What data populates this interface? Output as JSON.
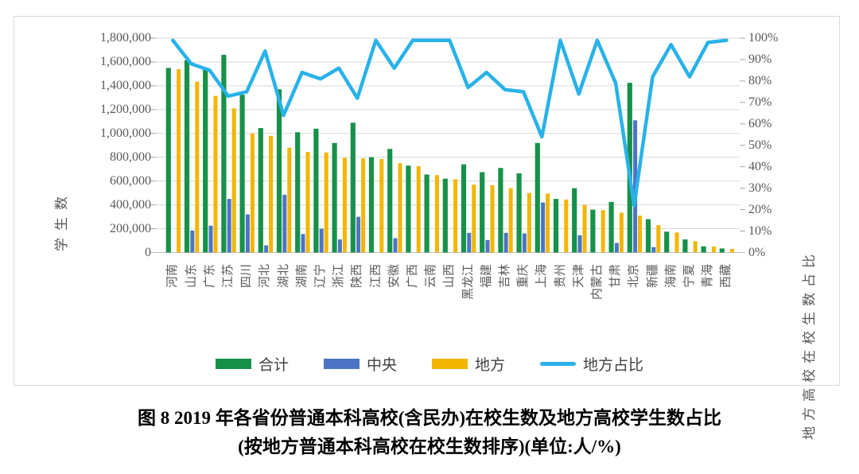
{
  "chart_data": {
    "type": "bar+line combo",
    "sorted_by": "local series descending",
    "categories": [
      "河南",
      "山东",
      "广东",
      "江苏",
      "四川",
      "河北",
      "湖北",
      "湖南",
      "辽宁",
      "浙江",
      "陕西",
      "江西",
      "安徽",
      "广西",
      "云南",
      "山西",
      "黑龙江",
      "福建",
      "吉林",
      "重庆",
      "上海",
      "贵州",
      "天津",
      "内蒙古",
      "甘肃",
      "北京",
      "新疆",
      "海南",
      "宁夏",
      "青海",
      "西藏"
    ],
    "series": [
      {
        "name": "合计",
        "type": "bar",
        "color": "#17914a",
        "values": [
          1550000,
          1615000,
          1540000,
          1660000,
          1325000,
          1045000,
          1370000,
          1010000,
          1040000,
          920000,
          1090000,
          800000,
          870000,
          730000,
          655000,
          620000,
          740000,
          675000,
          710000,
          665000,
          920000,
          450000,
          540000,
          360000,
          425000,
          1425000,
          280000,
          175000,
          110000,
          52000,
          34000
        ]
      },
      {
        "name": "中央",
        "type": "bar",
        "color": "#4d74c4",
        "values": [
          0,
          185000,
          225000,
          450000,
          320000,
          60000,
          485000,
          155000,
          200000,
          110000,
          300000,
          0,
          120000,
          0,
          0,
          0,
          165000,
          105000,
          165000,
          160000,
          420000,
          0,
          145000,
          0,
          80000,
          1110000,
          45000,
          0,
          0,
          0,
          0
        ]
      },
      {
        "name": "地方",
        "type": "bar",
        "color": "#f2b600",
        "values": [
          1540000,
          1435000,
          1315000,
          1210000,
          1000000,
          980000,
          880000,
          845000,
          840000,
          795000,
          790000,
          785000,
          750000,
          725000,
          650000,
          615000,
          570000,
          565000,
          540000,
          500000,
          495000,
          445000,
          400000,
          355000,
          335000,
          310000,
          230000,
          168000,
          95000,
          50000,
          30000
        ]
      },
      {
        "name": "地方占比",
        "type": "line",
        "axis": "right",
        "color": "#29b2e8",
        "values": [
          99,
          88,
          85,
          73,
          75,
          94,
          64,
          84,
          81,
          86,
          72,
          99,
          86,
          99,
          99,
          99,
          77,
          84,
          76,
          75,
          54,
          99,
          74,
          99,
          79,
          22,
          82,
          97,
          82,
          98,
          99
        ]
      }
    ],
    "left_axis": {
      "title": "学生数",
      "min": 0,
      "max": 1800000,
      "step": 200000,
      "tick_labels": [
        "1,800,000",
        "1,600,000",
        "1,400,000",
        "1,200,000",
        "1,000,000",
        "800,000",
        "600,000",
        "400,000",
        "200,000",
        "0"
      ]
    },
    "right_axis": {
      "title": "地方高校在校生数占比",
      "min": "0%",
      "max": "100%",
      "step": "10%",
      "tick_labels": [
        "100%",
        "90%",
        "80%",
        "70%",
        "60%",
        "50%",
        "40%",
        "30%",
        "20%",
        "10%",
        "0%"
      ]
    },
    "grid": true,
    "gridline_color": "#d9d9d9",
    "axis_text_color": "#595959",
    "legend_position": "bottom"
  },
  "caption": {
    "line1": "图 8  2019 年各省份普通本科高校(含民办)在校生数及地方高校学生数占比",
    "line2": "(按地方普通本科高校在校生数排序)(单位:人/%)"
  }
}
